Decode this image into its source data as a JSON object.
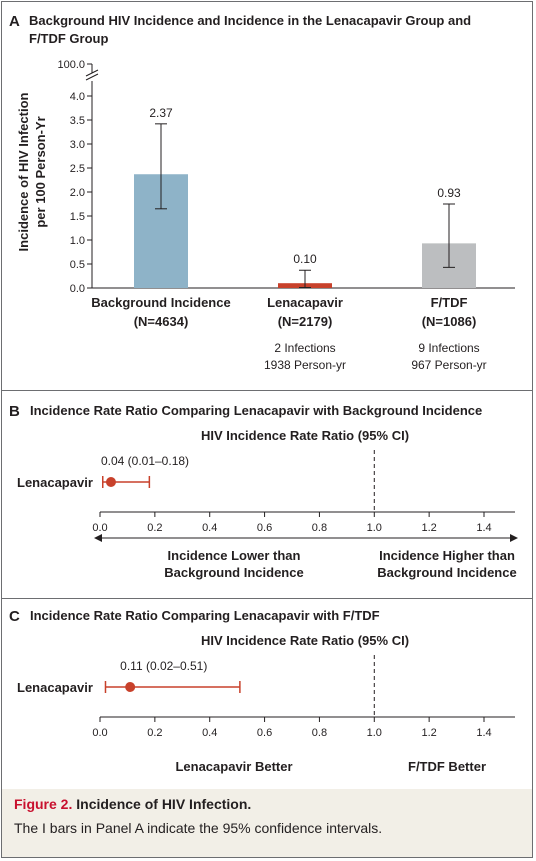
{
  "chart_data": [
    {
      "type": "bar",
      "panel_letter": "A",
      "title": "Background HIV Incidence and Incidence in the Lenacapavir Group and F/TDF Group",
      "title_lines": [
        "Background HIV Incidence and Incidence in the Lenacapavir Group and",
        "F/TDF Group"
      ],
      "ylabel_lines": [
        "Incidence of HIV Infection",
        "per 100 Person-Yr"
      ],
      "ylim": [
        0,
        4.0
      ],
      "y_break_top_label": "100.0",
      "y_ticks": [
        0.0,
        0.5,
        1.0,
        1.5,
        2.0,
        2.5,
        3.0,
        3.5,
        4.0
      ],
      "y_tick_labels": [
        "0.0",
        "0.5",
        "1.0",
        "1.5",
        "2.0",
        "2.5",
        "3.0",
        "3.5",
        "4.0"
      ],
      "categories": [
        "Background Incidence",
        "Lenacapavir",
        "F/TDF"
      ],
      "category_n": [
        "(N=4634)",
        "(N=2179)",
        "(N=1086)"
      ],
      "values": [
        2.37,
        0.1,
        0.93
      ],
      "value_labels": [
        "2.37",
        "0.10",
        "0.93"
      ],
      "ci_low": [
        1.65,
        0.01,
        0.43
      ],
      "ci_high": [
        3.42,
        0.37,
        1.75
      ],
      "bar_colors": [
        "#8eb3c8",
        "#c8412b",
        "#bcbec0"
      ],
      "notes": [
        [],
        [
          "2 Infections",
          "1938 Person-yr"
        ],
        [
          "9 Infections",
          "967 Person-yr"
        ]
      ]
    },
    {
      "type": "scatter",
      "panel_letter": "B",
      "title": "Incidence Rate Ratio Comparing Lenacapavir with Background Incidence",
      "subtitle": "HIV Incidence Rate Ratio (95% CI)",
      "row_label": "Lenacapavir",
      "point": 0.04,
      "ci": [
        0.01,
        0.18
      ],
      "point_label": "0.04 (0.01–0.18)",
      "xlim": [
        0.0,
        1.4
      ],
      "x_ticks": [
        0.0,
        0.2,
        0.4,
        0.6,
        0.8,
        1.0,
        1.2,
        1.4
      ],
      "x_tick_labels": [
        "0.0",
        "0.2",
        "0.4",
        "0.6",
        "0.8",
        "1.0",
        "1.2",
        "1.4"
      ],
      "reference_line": 1.0,
      "left_label_lines": [
        "Incidence Lower than",
        "Background Incidence"
      ],
      "right_label_lines": [
        "Incidence Higher than",
        "Background Incidence"
      ],
      "color": "#c8412b"
    },
    {
      "type": "scatter",
      "panel_letter": "C",
      "title": "Incidence Rate Ratio Comparing Lenacapavir with F/TDF",
      "subtitle": "HIV Incidence Rate Ratio (95% CI)",
      "row_label": "Lenacapavir",
      "point": 0.11,
      "ci": [
        0.02,
        0.51
      ],
      "point_label": "0.11 (0.02–0.51)",
      "xlim": [
        0.0,
        1.4
      ],
      "x_ticks": [
        0.0,
        0.2,
        0.4,
        0.6,
        0.8,
        1.0,
        1.2,
        1.4
      ],
      "x_tick_labels": [
        "0.0",
        "0.2",
        "0.4",
        "0.6",
        "0.8",
        "1.0",
        "1.2",
        "1.4"
      ],
      "reference_line": 1.0,
      "left_label_lines": [
        "Lenacapavir Better"
      ],
      "right_label_lines": [
        "F/TDF Better"
      ],
      "color": "#c8412b"
    }
  ],
  "caption": {
    "figure_label": "Figure 2.",
    "title": "Incidence of HIV Infection.",
    "text": "The I bars in Panel A indicate the 95% confidence intervals."
  }
}
